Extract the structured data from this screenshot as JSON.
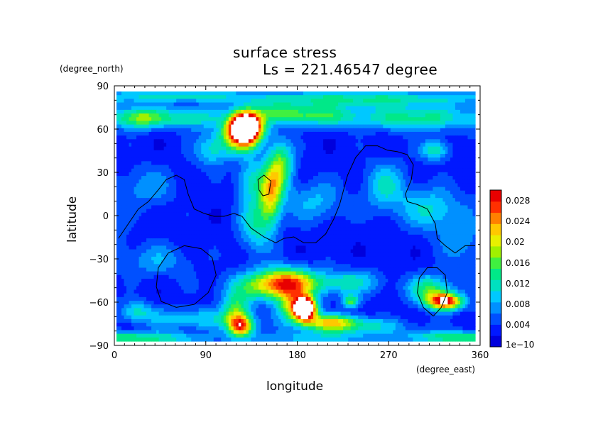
{
  "chart_data": {
    "type": "heatmap",
    "title": "surface stress",
    "subtitle": "Ls = 221.46547 degree",
    "xlabel": "longitude",
    "ylabel": "latitude",
    "x_unit": "(degree_east)",
    "y_unit": "(degree_north)",
    "xlim": [
      0,
      360
    ],
    "ylim": [
      -90,
      90
    ],
    "x_ticks": [
      "0",
      "90",
      "180",
      "270",
      "360"
    ],
    "y_ticks": [
      "90",
      "60",
      "30",
      "0",
      "−30",
      "−60",
      "−90"
    ],
    "colorbar": {
      "min": 0,
      "max": 0.03,
      "ticks": [
        "1e−10",
        "0.004",
        "0.008",
        "0.012",
        "0.016",
        "0.02",
        "0.024",
        "0.028"
      ],
      "colors": [
        "#0000dc",
        "#0018ff",
        "#0050ff",
        "#0090ff",
        "#00c8ff",
        "#00e0c0",
        "#00e888",
        "#40f040",
        "#a0f000",
        "#e8f000",
        "#ffc800",
        "#ff8000",
        "#ff3000",
        "#e80000"
      ]
    },
    "background_value": 0.003,
    "features": [
      {
        "lon": 130,
        "lat": 62,
        "peak": 0.034,
        "slon": 11,
        "slat": 7
      },
      {
        "lon": 125,
        "lat": 55,
        "peak": 0.02,
        "slon": 14,
        "slat": 8
      },
      {
        "lon": 25,
        "lat": 67,
        "peak": 0.014,
        "slon": 18,
        "slat": 5
      },
      {
        "lon": 75,
        "lat": 67,
        "peak": 0.01,
        "slon": 20,
        "slat": 5
      },
      {
        "lon": 170,
        "lat": 70,
        "peak": 0.011,
        "slon": 25,
        "slat": 5
      },
      {
        "lon": 215,
        "lat": 68,
        "peak": 0.008,
        "slon": 25,
        "slat": 5
      },
      {
        "lon": 300,
        "lat": 67,
        "peak": 0.011,
        "slon": 40,
        "slat": 6
      },
      {
        "lon": 240,
        "lat": 80,
        "peak": 0.01,
        "slon": 80,
        "slat": 4
      },
      {
        "lon": 60,
        "lat": 82,
        "peak": 0.008,
        "slon": 50,
        "slat": 3
      },
      {
        "lon": 165,
        "lat": 35,
        "peak": 0.013,
        "slon": 9,
        "slat": 12
      },
      {
        "lon": 155,
        "lat": 15,
        "peak": 0.016,
        "slon": 8,
        "slat": 14
      },
      {
        "lon": 140,
        "lat": -5,
        "peak": 0.009,
        "slon": 12,
        "slat": 14
      },
      {
        "lon": 135,
        "lat": 25,
        "peak": 0.008,
        "slon": 10,
        "slat": 10
      },
      {
        "lon": 95,
        "lat": 45,
        "peak": 0.008,
        "slon": 12,
        "slat": 8
      },
      {
        "lon": 320,
        "lat": 45,
        "peak": 0.01,
        "slon": 10,
        "slat": 5
      },
      {
        "lon": 270,
        "lat": 20,
        "peak": 0.008,
        "slon": 15,
        "slat": 12
      },
      {
        "lon": 315,
        "lat": 5,
        "peak": 0.008,
        "slon": 20,
        "slat": 10
      },
      {
        "lon": 200,
        "lat": 10,
        "peak": 0.006,
        "slon": 20,
        "slat": 10
      },
      {
        "lon": 30,
        "lat": 20,
        "peak": 0.005,
        "slon": 20,
        "slat": 10
      },
      {
        "lon": 40,
        "lat": -30,
        "peak": 0.005,
        "slon": 25,
        "slat": 8
      },
      {
        "lon": 345,
        "lat": -15,
        "peak": 0.005,
        "slon": 15,
        "slat": 12
      },
      {
        "lon": 170,
        "lat": -45,
        "peak": 0.018,
        "slon": 20,
        "slat": 7
      },
      {
        "lon": 150,
        "lat": -48,
        "peak": 0.01,
        "slon": 30,
        "slat": 7
      },
      {
        "lon": 230,
        "lat": -45,
        "peak": 0.009,
        "slon": 25,
        "slat": 6
      },
      {
        "lon": 190,
        "lat": -63,
        "peak": 0.032,
        "slon": 7,
        "slat": 5
      },
      {
        "lon": 180,
        "lat": -62,
        "peak": 0.018,
        "slon": 12,
        "slat": 7
      },
      {
        "lon": 215,
        "lat": -72,
        "peak": 0.014,
        "slon": 20,
        "slat": 4
      },
      {
        "lon": 240,
        "lat": -75,
        "peak": 0.008,
        "slon": 40,
        "slat": 4
      },
      {
        "lon": 125,
        "lat": -75,
        "peak": 0.022,
        "slon": 9,
        "slat": 5
      },
      {
        "lon": 120,
        "lat": -64,
        "peak": 0.012,
        "slon": 10,
        "slat": 8
      },
      {
        "lon": 235,
        "lat": -58,
        "peak": 0.012,
        "slon": 6,
        "slat": 3
      },
      {
        "lon": 330,
        "lat": -58,
        "peak": 0.026,
        "slon": 12,
        "slat": 4
      },
      {
        "lon": 315,
        "lat": -50,
        "peak": 0.012,
        "slon": 15,
        "slat": 7
      },
      {
        "lon": 75,
        "lat": -70,
        "peak": 0.008,
        "slon": 30,
        "slat": 5
      },
      {
        "lon": 20,
        "lat": -65,
        "peak": 0.008,
        "slon": 12,
        "slat": 5
      },
      {
        "lon": 30,
        "lat": -83,
        "peak": 0.01,
        "slon": 40,
        "slat": 3
      },
      {
        "lon": 330,
        "lat": -82,
        "peak": 0.008,
        "slon": 30,
        "slat": 3
      },
      {
        "lon": 200,
        "lat": -83,
        "peak": 0.006,
        "slon": 50,
        "slat": 3
      }
    ],
    "contours": [
      [
        [
          2,
          -15
        ],
        [
          12,
          -5
        ],
        [
          22,
          5
        ],
        [
          32,
          10
        ],
        [
          42,
          18
        ],
        [
          50,
          25
        ],
        [
          60,
          28
        ],
        [
          68,
          25
        ],
        [
          72,
          15
        ],
        [
          78,
          5
        ],
        [
          88,
          2
        ],
        [
          98,
          0
        ],
        [
          108,
          0
        ],
        [
          118,
          2
        ],
        [
          126,
          0
        ],
        [
          135,
          -8
        ],
        [
          148,
          -14
        ],
        [
          160,
          -18
        ],
        [
          168,
          -15
        ],
        [
          178,
          -14
        ],
        [
          188,
          -18
        ],
        [
          200,
          -18
        ],
        [
          210,
          -12
        ],
        [
          218,
          -2
        ],
        [
          224,
          8
        ],
        [
          228,
          18
        ],
        [
          232,
          28
        ],
        [
          240,
          40
        ],
        [
          250,
          48
        ],
        [
          262,
          48
        ],
        [
          272,
          45
        ],
        [
          282,
          44
        ],
        [
          292,
          42
        ],
        [
          298,
          35
        ],
        [
          296,
          25
        ],
        [
          290,
          15
        ],
        [
          292,
          10
        ],
        [
          302,
          8
        ],
        [
          312,
          5
        ],
        [
          320,
          -5
        ],
        [
          322,
          -15
        ],
        [
          330,
          -20
        ],
        [
          340,
          -25
        ],
        [
          350,
          -20
        ],
        [
          360,
          -20
        ]
      ],
      [
        [
          68,
          -20
        ],
        [
          52,
          -25
        ],
        [
          42,
          -35
        ],
        [
          40,
          -48
        ],
        [
          45,
          -58
        ],
        [
          60,
          -62
        ],
        [
          78,
          -60
        ],
        [
          92,
          -52
        ],
        [
          100,
          -40
        ],
        [
          96,
          -28
        ],
        [
          85,
          -22
        ],
        [
          68,
          -20
        ]
      ],
      [
        [
          143,
          18
        ],
        [
          142,
          25
        ],
        [
          148,
          28
        ],
        [
          155,
          24
        ],
        [
          153,
          15
        ],
        [
          147,
          14
        ],
        [
          143,
          18
        ]
      ],
      [
        [
          318,
          -68
        ],
        [
          308,
          -62
        ],
        [
          302,
          -52
        ],
        [
          304,
          -42
        ],
        [
          312,
          -35
        ],
        [
          322,
          -35
        ],
        [
          330,
          -40
        ],
        [
          332,
          -52
        ],
        [
          326,
          -62
        ],
        [
          318,
          -68
        ]
      ]
    ]
  }
}
